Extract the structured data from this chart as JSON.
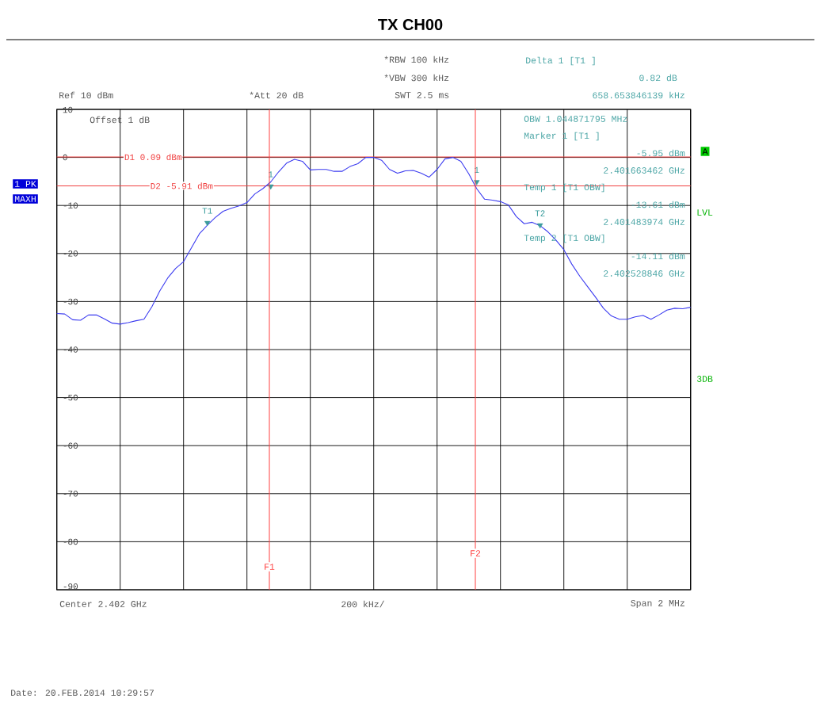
{
  "chart_data": {
    "type": "line",
    "title": "TX CH00",
    "categories": [
      null,
      null,
      null,
      null,
      null,
      null,
      null,
      null,
      null,
      null,
      null,
      null,
      null,
      null,
      null,
      null,
      null,
      null,
      null,
      null,
      null,
      null,
      null,
      null,
      null,
      null,
      null,
      null,
      null,
      null,
      null,
      null,
      null,
      null,
      null,
      null,
      null,
      null,
      null,
      null,
      null,
      null,
      null,
      null,
      null,
      null,
      null,
      null,
      null,
      null,
      null,
      null,
      null,
      null,
      null,
      null,
      null,
      null,
      null,
      null,
      null,
      null,
      null,
      null,
      null,
      null,
      null,
      null,
      null,
      null,
      null,
      null,
      null,
      null,
      null,
      null,
      null,
      null,
      null,
      null,
      null
    ],
    "ylim": [
      -90,
      10
    ],
    "yticks": [
      -90,
      -80,
      -70,
      -60,
      -50,
      -40,
      -30,
      -20,
      -10,
      0,
      10
    ],
    "tick_labels": "y",
    "grid": true,
    "series": [
      {
        "color": "#3c3cf0",
        "values": [
          -32.5,
          -32.6,
          -33.8,
          -33.9,
          -32.8,
          -32.8,
          -33.6,
          -34.5,
          -34.7,
          -34.4,
          -34.0,
          -33.7,
          -31.1,
          -27.8,
          -25.1,
          -23.1,
          -21.7,
          -18.8,
          -15.9,
          -14.1,
          -12.5,
          -11.2,
          -10.6,
          -10.1,
          -9.4,
          -7.6,
          -6.5,
          -5.1,
          -3.0,
          -1.2,
          -0.4,
          -0.8,
          -2.6,
          -2.5,
          -2.5,
          -2.9,
          -2.9,
          -1.9,
          -1.3,
          0,
          0,
          -0.6,
          -2.5,
          -3.3,
          -2.8,
          -2.7,
          -3.3,
          -4.1,
          -2.5,
          -0.3,
          0,
          -0.8,
          -3.4,
          -6.5,
          -8.7,
          -8.9,
          -9.2,
          -9.9,
          -12.3,
          -13.8,
          -13.5,
          -14.2,
          -15.5,
          -17.2,
          -19.2,
          -22.2,
          -24.7,
          -26.9,
          -29.1,
          -31.4,
          -33.0,
          -33.7,
          -33.7,
          -33.2,
          -32.9,
          -33.7,
          -32.8,
          -31.8,
          -31.4,
          -31.5,
          -31.2
        ]
      },
      {
        "type": "scatter",
        "color": "#3c9c9c",
        "marker": "triangle",
        "values": [
          null,
          null,
          null,
          null,
          null,
          null,
          null,
          null,
          null,
          null,
          null,
          null,
          null,
          null,
          null,
          null,
          null,
          null,
          null,
          -13.6,
          null,
          null,
          null,
          null,
          null,
          null,
          null,
          -6.0,
          null,
          null,
          null,
          null,
          null,
          null,
          null,
          null,
          null,
          null,
          null,
          null,
          null,
          null,
          null,
          null,
          null,
          null,
          null,
          null,
          null,
          null,
          null,
          null,
          null,
          -5.1,
          null,
          null,
          null,
          null,
          null,
          null,
          null,
          -14.1,
          null,
          null,
          null,
          null,
          null,
          null,
          null,
          null,
          null,
          null,
          null,
          null,
          null,
          null,
          null,
          null,
          null,
          null,
          null
        ]
      }
    ],
    "ref_lines": [
      {
        "axis": "y",
        "value": 0.09,
        "label": "D1 0.09 dBm",
        "color": "#f04040"
      },
      {
        "axis": "y",
        "value": -5.91,
        "label": "D2 -5.91 dBm",
        "color": "#f04040"
      }
    ],
    "annotations": [
      "Ref 10 dBm",
      "*Att 20 dB",
      "*RBW 100 kHz",
      "*VBW 300 kHz",
      "SWT 2.5 ms",
      "Delta 1 [T1 ]",
      "0.82 dB",
      "658.653846139 kHz",
      "Offset 1 dB",
      "OBW 1.044871795 MHz",
      "Marker 1 [T1 ]",
      "-5.95 dBm",
      "2.401663462 GHz",
      "Temp 1 [T1 OBW]",
      "-13.61 dBm",
      "2.401483974 GHz",
      "Temp 2 [T1 OBW]",
      "-14.11 dBm",
      "2.402528846 GHz",
      "1 PK",
      "MAXH",
      "A",
      "LVL",
      "3DB",
      "Center 2.402 GHz",
      "200 kHz/",
      "Span 2 MHz",
      "Date: 20.FEB.2014 10:29:57",
      "F1",
      "F2",
      {
        "text": "1",
        "y": -6.0
      },
      {
        "text": "T1",
        "y": -13.6
      },
      {
        "text": "T2",
        "y": -14.1
      },
      {
        "text": "1",
        "y": -5.1
      }
    ]
  }
}
